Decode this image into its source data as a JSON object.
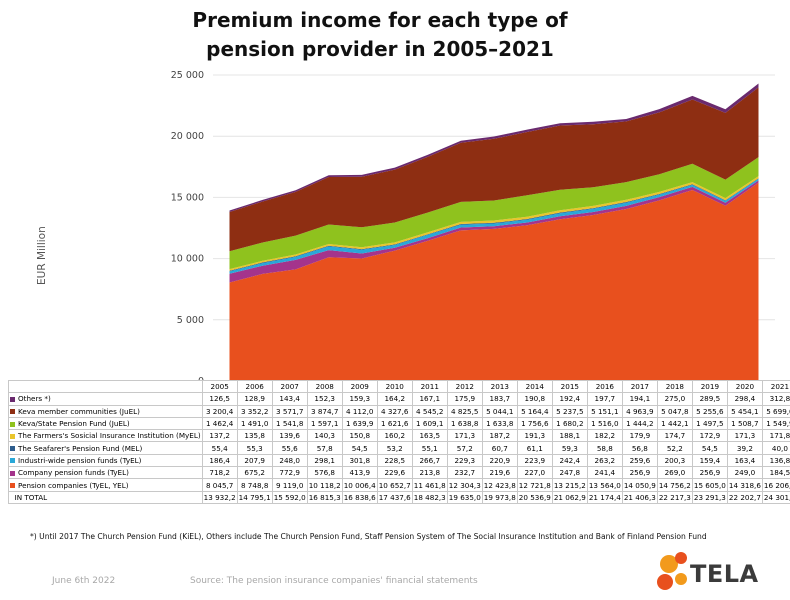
{
  "title": "Premium income for each type of pension provider in 2005–2021",
  "ylabel": "EUR Million",
  "footnote": "*) Until 2017 The Church Pension Fund (KiEL), Others include The Church Pension Fund, Staff Pension System of The Social Insurance Institution and Bank of Finland Pension Fund",
  "date": "June 6th 2022",
  "source": "Source: The pension insurance companies' financial statements",
  "logo_text": "TELA",
  "chart_data": {
    "type": "area",
    "stacked": true,
    "x": [
      "2005",
      "2006",
      "2007",
      "2008",
      "2009",
      "2010",
      "2011",
      "2012",
      "2013",
      "2014",
      "2015",
      "2016",
      "2017",
      "2018",
      "2019",
      "2020",
      "2021"
    ],
    "ylim": [
      0,
      25000
    ],
    "yticks": [
      "0",
      "5 000",
      "10 000",
      "15 000",
      "20 000",
      "25 000"
    ],
    "series": [
      {
        "name": "Pension companies (TyEL, YEL)",
        "color": "#e8501e",
        "values": [
          8045.7,
          8748.8,
          9119.0,
          10118.2,
          10006.4,
          10652.7,
          11461.8,
          12304.3,
          12423.8,
          12721.8,
          13215.2,
          13564.0,
          14050.9,
          14756.2,
          15605.0,
          14318.6,
          16206.8
        ],
        "labels": [
          "8 045,7",
          "8 748,8",
          "9 119,0",
          "10 118,2",
          "10 006,4",
          "10 652,7",
          "11 461,8",
          "12 304,3",
          "12 423,8",
          "12 721,8",
          "13 215,2",
          "13 564,0",
          "14 050,9",
          "14 756,2",
          "15 605,0",
          "14 318,6",
          "16 206,8"
        ]
      },
      {
        "name": "Company pension funds (TyEL)",
        "color": "#a4348c",
        "values": [
          718.2,
          675.2,
          772.9,
          576.8,
          413.9,
          229.6,
          213.8,
          232.7,
          219.6,
          227.0,
          247.8,
          241.4,
          256.9,
          269.0,
          256.9,
          249.0,
          184.5
        ],
        "labels": [
          "718,2",
          "675,2",
          "772,9",
          "576,8",
          "413,9",
          "229,6",
          "213,8",
          "232,7",
          "219,6",
          "227,0",
          "247,8",
          "241,4",
          "256,9",
          "269,0",
          "256,9",
          "249,0",
          "184,5"
        ]
      },
      {
        "name": "Industri-wide pension funds (TyEL)",
        "color": "#29a8d8",
        "values": [
          186.4,
          207.9,
          248.0,
          298.1,
          301.8,
          228.5,
          266.7,
          229.3,
          220.9,
          223.9,
          242.4,
          263.2,
          259.6,
          200.3,
          159.4,
          163.4,
          136.8
        ],
        "labels": [
          "186,4",
          "207,9",
          "248,0",
          "298,1",
          "301,8",
          "228,5",
          "266,7",
          "229,3",
          "220,9",
          "223,9",
          "242,4",
          "263,2",
          "259,6",
          "200,3",
          "159,4",
          "163,4",
          "136,8"
        ]
      },
      {
        "name": "The Seafarer's Pension Fund (MEL)",
        "color": "#2d5c8c",
        "values": [
          55.4,
          55.3,
          55.6,
          57.8,
          54.5,
          53.2,
          55.1,
          57.2,
          60.7,
          61.1,
          59.3,
          58.8,
          56.8,
          52.2,
          54.5,
          39.2,
          40.0
        ],
        "labels": [
          "55,4",
          "55,3",
          "55,6",
          "57,8",
          "54,5",
          "53,2",
          "55,1",
          "57,2",
          "60,7",
          "61,1",
          "59,3",
          "58,8",
          "56,8",
          "52,2",
          "54,5",
          "39,2",
          "40,0"
        ]
      },
      {
        "name": "The Farmers's Sosicial Insurance Institution (MyEL)",
        "color": "#e9c52c",
        "values": [
          137.2,
          135.8,
          139.6,
          140.3,
          150.8,
          160.2,
          163.5,
          171.3,
          187.2,
          191.3,
          188.1,
          182.2,
          179.9,
          174.7,
          172.9,
          171.3,
          171.8
        ],
        "labels": [
          "137,2",
          "135,8",
          "139,6",
          "140,3",
          "150,8",
          "160,2",
          "163,5",
          "171,3",
          "187,2",
          "191,3",
          "188,1",
          "182,2",
          "179,9",
          "174,7",
          "172,9",
          "171,3",
          "171,8"
        ]
      },
      {
        "name": "Keva/State Pension Fund (JuEL)",
        "color": "#8fc21e",
        "values": [
          1462.4,
          1491.0,
          1541.8,
          1597.1,
          1639.9,
          1621.6,
          1609.1,
          1638.8,
          1633.8,
          1756.6,
          1680.2,
          1516.0,
          1444.2,
          1442.1,
          1497.5,
          1508.7,
          1549.9
        ],
        "labels": [
          "1 462,4",
          "1 491,0",
          "1 541,8",
          "1 597,1",
          "1 639,9",
          "1 621,6",
          "1 609,1",
          "1 638,8",
          "1 633,8",
          "1 756,6",
          "1 680,2",
          "1 516,0",
          "1 444,2",
          "1 442,1",
          "1 497,5",
          "1 508,7",
          "1 549,9"
        ]
      },
      {
        "name": "Keva member communities (JuEL)",
        "color": "#8e2e12",
        "values": [
          3200.4,
          3352.2,
          3571.7,
          3874.7,
          4112.0,
          4327.6,
          4545.2,
          4825.5,
          5044.1,
          5164.4,
          5237.5,
          5151.1,
          4963.9,
          5047.8,
          5255.6,
          5454.1,
          5699.0
        ],
        "labels": [
          "3 200,4",
          "3 352,2",
          "3 571,7",
          "3 874,7",
          "4 112,0",
          "4 327,6",
          "4 545,2",
          "4 825,5",
          "5 044,1",
          "5 164,4",
          "5 237,5",
          "5 151,1",
          "4 963,9",
          "5 047,8",
          "5 255,6",
          "5 454,1",
          "5 699,0"
        ]
      },
      {
        "name": "Others *)",
        "color": "#6a2a6e",
        "values": [
          126.5,
          128.9,
          143.4,
          152.3,
          159.3,
          164.2,
          167.1,
          175.9,
          183.7,
          190.8,
          192.4,
          197.7,
          194.1,
          275.0,
          289.5,
          298.4,
          312.8
        ],
        "labels": [
          "126,5",
          "128,9",
          "143,4",
          "152,3",
          "159,3",
          "164,2",
          "167,1",
          "175,9",
          "183,7",
          "190,8",
          "192,4",
          "197,7",
          "194,1",
          "275,0",
          "289,5",
          "298,4",
          "312,8"
        ]
      }
    ],
    "total": {
      "name": "IN TOTAL",
      "labels": [
        "13 932,2",
        "14 795,1",
        "15 592,0",
        "16 815,3",
        "16 838,6",
        "17 437,6",
        "18 482,3",
        "19 635,0",
        "19 973,8",
        "20 536,9",
        "21 062,9",
        "21 174,4",
        "21 406,3",
        "22 217,3",
        "23 291,3",
        "22 202,7",
        "24 301,6"
      ]
    }
  }
}
